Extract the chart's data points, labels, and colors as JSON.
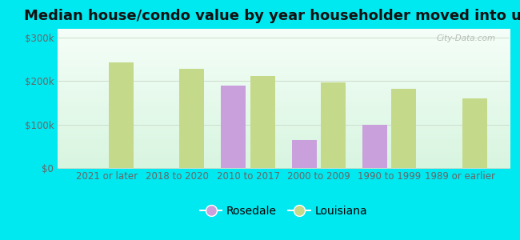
{
  "title": "Median house/condo value by year householder moved into unit",
  "categories": [
    "2021 or later",
    "2018 to 2020",
    "2010 to 2017",
    "2000 to 2009",
    "1990 to 1999",
    "1989 or earlier"
  ],
  "rosedale": [
    null,
    null,
    190000,
    65000,
    100000,
    null
  ],
  "louisiana": [
    243000,
    228000,
    212000,
    196000,
    182000,
    160000
  ],
  "rosedale_color": "#c9a0dc",
  "louisiana_color": "#c5d98a",
  "bar_width": 0.35,
  "ylim": [
    0,
    320000
  ],
  "yticks": [
    0,
    100000,
    200000,
    300000
  ],
  "ytick_labels": [
    "$0",
    "$100k",
    "$200k",
    "$300k"
  ],
  "plot_bg_top": "#f5fef8",
  "plot_bg_bottom": "#d8f5e0",
  "outer_background": "#00e8f0",
  "grid_color": "#ccddcc",
  "watermark": "City-Data.com",
  "legend_rosedale": "Rosedale",
  "legend_louisiana": "Louisiana",
  "title_fontsize": 13,
  "tick_fontsize": 8.5,
  "legend_fontsize": 10,
  "tick_color": "#666666",
  "title_color": "#111111"
}
